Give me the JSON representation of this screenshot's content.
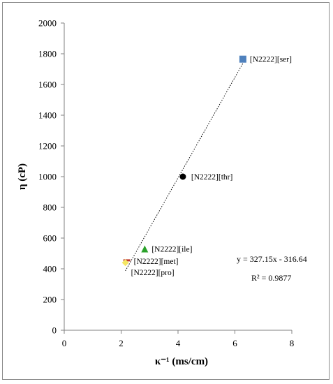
{
  "chart_data": {
    "type": "scatter",
    "xlabel": "κ⁻¹ (ms/cm)",
    "ylabel": "η (cP)",
    "xlim": [
      0,
      8
    ],
    "ylim": [
      0,
      2000
    ],
    "x_ticks": [
      0,
      2,
      4,
      6,
      8
    ],
    "y_ticks": [
      0,
      200,
      400,
      600,
      800,
      1000,
      1200,
      1400,
      1600,
      1800,
      2000
    ],
    "grid": false,
    "points": [
      {
        "label": "[N2222][ser]",
        "x": 6.28,
        "y": 1765,
        "marker": "square",
        "color": "#4f81bd"
      },
      {
        "label": "[N2222][thr]",
        "x": 4.17,
        "y": 1000,
        "marker": "circle",
        "color": "#000000"
      },
      {
        "label": "[N2222][ile]",
        "x": 2.83,
        "y": 525,
        "marker": "triangle",
        "color": "#2aa12a"
      },
      {
        "label": "[N2222][met]",
        "x": 2.2,
        "y": 455,
        "marker": "dash",
        "color": "#c0392b"
      },
      {
        "label": "[N2222][pro]",
        "x": 2.15,
        "y": 440,
        "marker": "diamond",
        "color": "#f5e663"
      }
    ],
    "trendline": {
      "slope": 327.15,
      "intercept": -316.64,
      "x_range": [
        2.15,
        6.28
      ],
      "style": "dotted",
      "equation": "y = 327.15x - 316.64",
      "r_squared": "R² = 0.9877"
    }
  }
}
